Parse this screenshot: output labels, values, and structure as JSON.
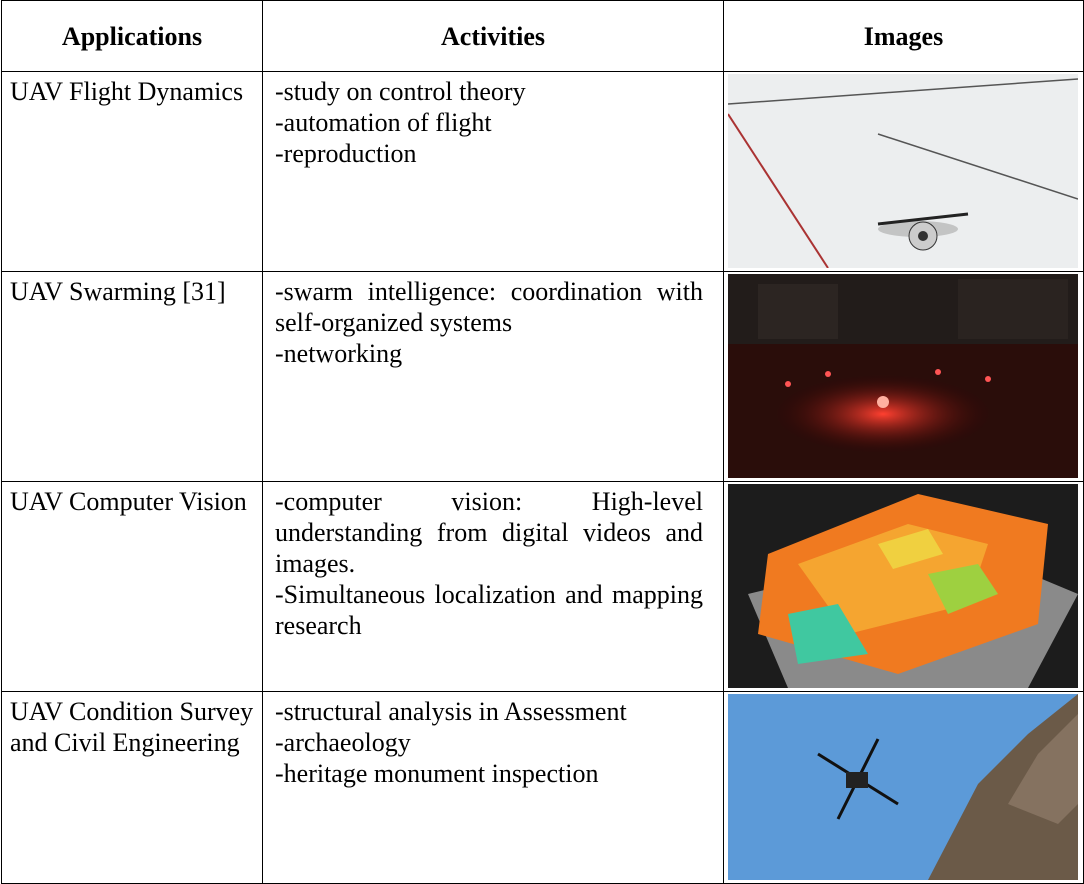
{
  "table": {
    "header": [
      "Applications",
      "Activities",
      "Images"
    ],
    "rows": [
      {
        "application": "UAV Flight Dynamics",
        "activities": [
          "-study on control theory",
          "-automation of flight",
          "-reproduction"
        ]
      },
      {
        "application": "UAV Swarming [31]",
        "activities": [
          "-swarm intelligence: coordination with self-organized systems",
          "-networking"
        ]
      },
      {
        "application": "UAV Computer Vision",
        "activities": [
          "-computer vision: High-level understanding from digital videos and images.",
          "-Simultaneous localization and mapping research"
        ]
      },
      {
        "application": "UAV Condition Survey and Civil Engineering",
        "activities": [
          "-structural analysis in Assessment",
          "-archaeology",
          "-heritage monument inspection"
        ]
      }
    ]
  }
}
